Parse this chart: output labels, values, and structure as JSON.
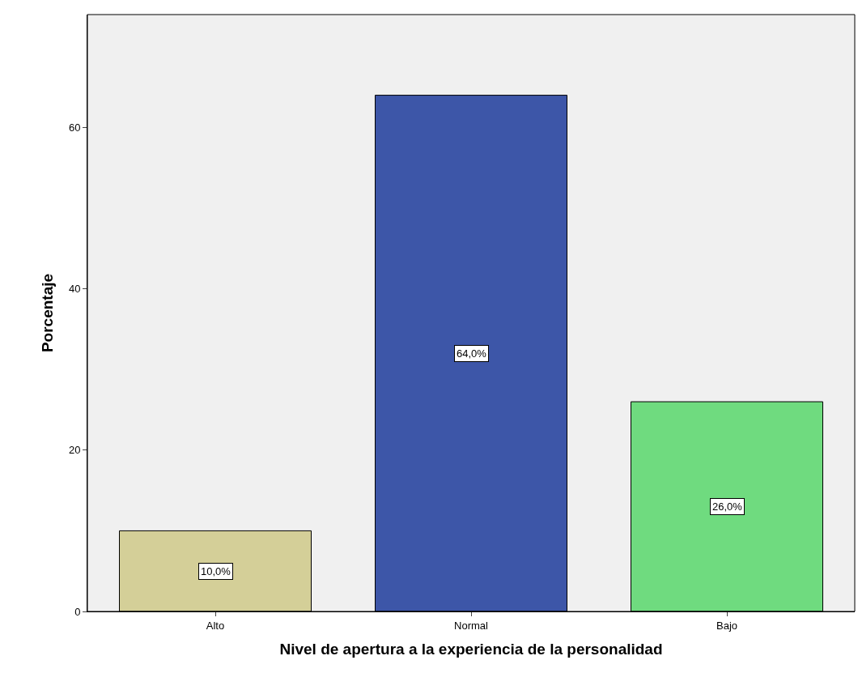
{
  "chart_data": {
    "type": "bar",
    "xlabel": "Nivel de apertura a la experiencia de la personalidad",
    "ylabel": "Porcentaje",
    "categories": [
      "Alto",
      "Normal",
      "Bajo"
    ],
    "values": [
      10,
      64,
      26
    ],
    "colors": [
      "#d4cf98",
      "#3d56a8",
      "#6fdb7f"
    ],
    "value_labels": [
      "10,0%",
      "64,0%",
      "26,0%"
    ],
    "ylim": [
      0,
      74
    ],
    "yticks": [
      0,
      20,
      40,
      60
    ],
    "grid": false
  }
}
